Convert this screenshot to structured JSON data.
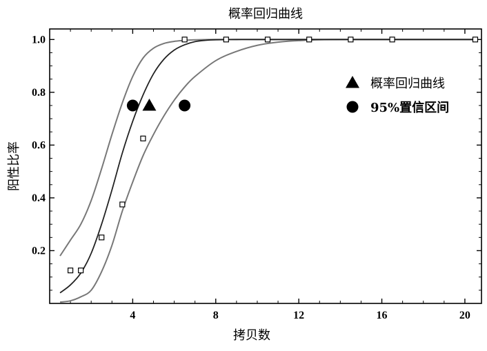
{
  "chart_data": {
    "type": "line",
    "title": "概率回归曲线",
    "xlabel": "拷贝数",
    "ylabel": "阳性比率",
    "xlim": [
      0,
      20.8
    ],
    "ylim": [
      0,
      1.04
    ],
    "x_ticks": [
      4,
      8,
      12,
      16,
      20
    ],
    "y_ticks": [
      0.2,
      0.4,
      0.6,
      0.8,
      1.0
    ],
    "y_tick_labels": [
      "0.2",
      "0.4",
      "0.6",
      "0.8",
      "1.0"
    ],
    "grid": false,
    "legend_position": "top-right",
    "legend": [
      {
        "label": "概率回归曲线",
        "marker": "triangle"
      },
      {
        "label": "95%置信区间",
        "marker": "circle"
      }
    ],
    "observed_points": {
      "x": [
        1,
        1.5,
        2.5,
        3.5,
        4.5,
        6.5,
        8.5,
        10.5,
        12.5,
        14.5,
        16.5,
        20.5
      ],
      "y": [
        0.125,
        0.125,
        0.25,
        0.375,
        0.625,
        1.0,
        1.0,
        1.0,
        1.0,
        1.0,
        1.0,
        1.0
      ]
    },
    "fit_curve": {
      "x": [
        0.5,
        1,
        1.5,
        2,
        2.5,
        3,
        3.5,
        4,
        4.5,
        5,
        5.5,
        6,
        6.5,
        7,
        7.5,
        8,
        9,
        10,
        12,
        20.5
      ],
      "y": [
        0.04,
        0.07,
        0.115,
        0.19,
        0.3,
        0.43,
        0.57,
        0.69,
        0.79,
        0.87,
        0.925,
        0.96,
        0.98,
        0.992,
        0.997,
        0.999,
        1.0,
        1.0,
        1.0,
        1.0
      ]
    },
    "upper_ci": {
      "x": [
        0.5,
        1,
        1.5,
        2,
        2.5,
        3,
        3.5,
        4,
        4.5,
        5,
        5.5,
        6,
        6.5,
        7,
        8,
        9,
        12,
        20.5
      ],
      "y": [
        0.18,
        0.24,
        0.3,
        0.39,
        0.51,
        0.64,
        0.76,
        0.86,
        0.93,
        0.967,
        0.985,
        0.993,
        0.997,
        0.999,
        1.0,
        1.0,
        1.0,
        1.0
      ]
    },
    "lower_ci": {
      "x": [
        0.5,
        1,
        1.5,
        2,
        2.5,
        3,
        3.5,
        4,
        4.5,
        5,
        5.5,
        6,
        6.5,
        7,
        8,
        9,
        10,
        11,
        12,
        14,
        20.5
      ],
      "y": [
        0.005,
        0.01,
        0.025,
        0.05,
        0.12,
        0.22,
        0.35,
        0.46,
        0.56,
        0.64,
        0.71,
        0.77,
        0.82,
        0.86,
        0.92,
        0.955,
        0.978,
        0.99,
        0.996,
        1.0,
        1.0
      ]
    },
    "ld95_estimate": {
      "x": 4.8,
      "y": 0.75
    },
    "ld95_ci": [
      {
        "x": 4,
        "y": 0.75
      },
      {
        "x": 6.5,
        "y": 0.75
      }
    ],
    "colors": {
      "fit_curve": "#222222",
      "ci_curve": "#777777",
      "axis": "#000000",
      "marker": "#000000"
    }
  }
}
